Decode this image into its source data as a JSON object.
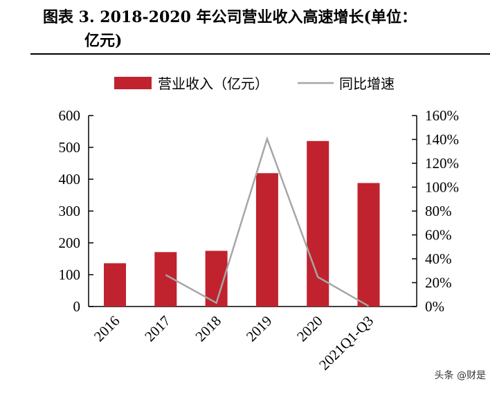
{
  "title_line1": "图表 3.   2018-2020 年公司营业收入高速增长(单位：",
  "title_line2": "亿元)",
  "watermark": "头条 @财是",
  "chart_data": {
    "type": "bar+line",
    "categories": [
      "2016",
      "2017",
      "2018",
      "2019",
      "2020",
      "2021Q1-Q3"
    ],
    "series": [
      {
        "name": "营业收入（亿元）",
        "type": "bar",
        "axis": "left",
        "color": "#c0232e",
        "values": [
          136,
          171,
          175,
          419,
          520,
          388
        ]
      },
      {
        "name": "同比增速",
        "type": "line",
        "axis": "right",
        "color": "#a6a6a6",
        "values": [
          null,
          26.5,
          3,
          140.5,
          24.7,
          0.4
        ]
      }
    ],
    "ylim_left": [
      0,
      600
    ],
    "yticks_left": [
      "0",
      "100",
      "200",
      "300",
      "400",
      "500",
      "600"
    ],
    "ylim_right": [
      0,
      160
    ],
    "yticks_right": [
      "0%",
      "20%",
      "40%",
      "60%",
      "80%",
      "100%",
      "120%",
      "140%",
      "160%"
    ],
    "legend_placement": "top",
    "grid": false
  }
}
